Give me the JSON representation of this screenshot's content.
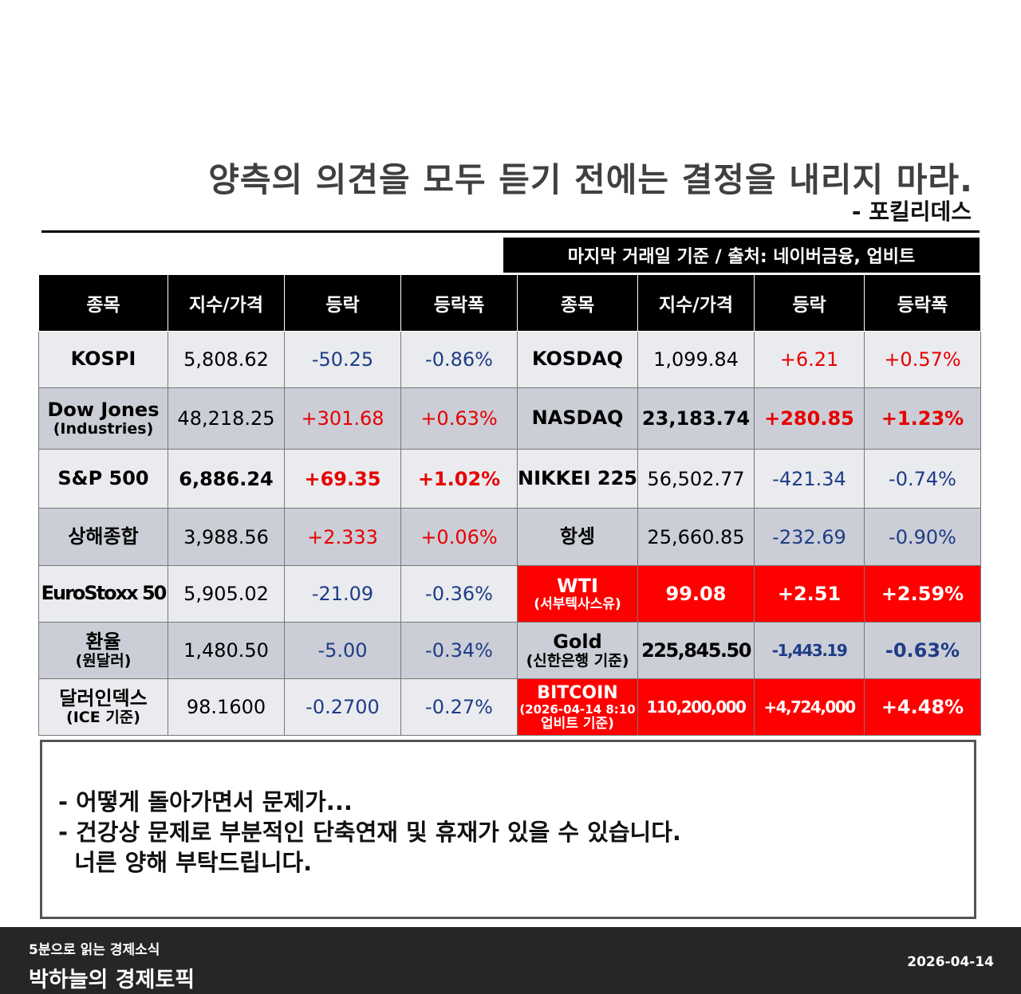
{
  "header": {
    "quote": "양측의 의견을 모두 듣기 전에는 결정을 내리지 마라.",
    "author": "- 포킬리데스",
    "source_note": "마지막 거래일 기준 / 출처: 네이버금융, 업비트"
  },
  "table": {
    "headers": [
      "종목",
      "지수/가격",
      "등락",
      "등락폭",
      "종목",
      "지수/가격",
      "등락",
      "등락폭"
    ],
    "rows": [
      {
        "left": {
          "name": "KOSPI",
          "sub": "",
          "price": "5,808.62",
          "change": "-50.25",
          "pct": "-0.86%"
        },
        "right": {
          "name": "KOSDAQ",
          "sub": "",
          "price": "1,099.84",
          "change": "+6.21",
          "pct": "+0.57%"
        }
      },
      {
        "left": {
          "name": "Dow Jones",
          "sub": "(Industries)",
          "price": "48,218.25",
          "change": "+301.68",
          "pct": "+0.63%"
        },
        "right": {
          "name": "NASDAQ",
          "sub": "",
          "price": "23,183.74",
          "change": "+280.85",
          "pct": "+1.23%"
        }
      },
      {
        "left": {
          "name": "S&P 500",
          "sub": "",
          "price": "6,886.24",
          "change": "+69.35",
          "pct": "+1.02%"
        },
        "right": {
          "name": "NIKKEI 225",
          "sub": "",
          "price": "56,502.77",
          "change": "-421.34",
          "pct": "-0.74%"
        }
      },
      {
        "left": {
          "name": "상해종합",
          "sub": "",
          "price": "3,988.56",
          "change": "+2.333",
          "pct": "+0.06%"
        },
        "right": {
          "name": "항셍",
          "sub": "",
          "price": "25,660.85",
          "change": "-232.69",
          "pct": "-0.90%"
        }
      },
      {
        "left": {
          "name": "EuroStoxx 50",
          "sub": "",
          "price": "5,905.02",
          "change": "-21.09",
          "pct": "-0.36%"
        },
        "right": {
          "name": "WTI",
          "sub": "(서부텍사스유)",
          "price": "99.08",
          "change": "+2.51",
          "pct": "+2.59%"
        }
      },
      {
        "left": {
          "name": "환율",
          "sub": "(원달러)",
          "price": "1,480.50",
          "change": "-5.00",
          "pct": "-0.34%"
        },
        "right": {
          "name": "Gold",
          "sub": "(신한은행 기준)",
          "price": "225,845.50",
          "change": "-1,443.19",
          "pct": "-0.63%"
        }
      },
      {
        "left": {
          "name": "달러인덱스",
          "sub": "(ICE 기준)",
          "price": "98.1600",
          "change": "-0.2700",
          "pct": "-0.27%"
        },
        "right": {
          "name": "BITCOIN",
          "sub": "(2026-04-14 8:10",
          "sub2": "업비트 기준)",
          "price": "110,200,000",
          "change": "+4,724,000",
          "pct": "+4.48%"
        }
      }
    ]
  },
  "notice": {
    "lines": [
      "- 어떻게 돌아가면서 문제가...",
      "- 건강상 문제로 부분적인 단축연재 및 휴재가 있을 수 있습니다.",
      "  너른 양해 부탁드립니다."
    ]
  },
  "footer": {
    "series": "5분으로 읽는 경제소식",
    "brand": "박하늘의 경제토픽",
    "date": "2026-04-14"
  }
}
